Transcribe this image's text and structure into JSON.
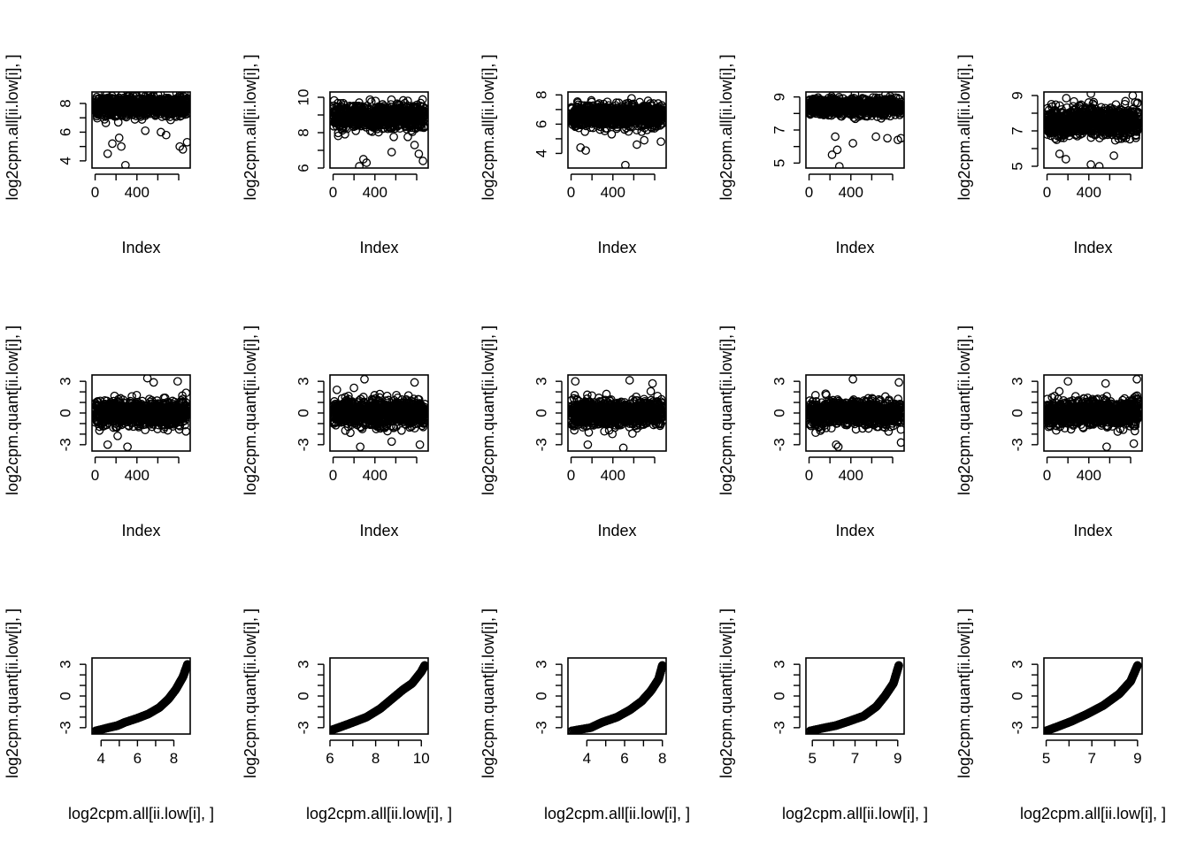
{
  "chart_data": {
    "type": "scatter",
    "layout": {
      "rows": 3,
      "cols": 5
    },
    "panels": [
      {
        "row": 0,
        "col": 0,
        "kind": "index",
        "xlabel": "Index",
        "ylabel": "log2cpm.all[ii.low[i], ]",
        "xlim": [
          -30,
          910
        ],
        "ylim": [
          3.5,
          8.8
        ],
        "xticks": [
          0,
          200,
          400,
          600,
          800
        ],
        "xtick_labels": [
          "0",
          "",
          "400",
          "",
          ""
        ],
        "yticks": [
          4,
          5,
          6,
          7,
          8
        ],
        "ytick_labels": [
          "4",
          "",
          "6",
          "",
          "8"
        ],
        "center": 7.8,
        "spread": 0.55,
        "n": 850,
        "outliers": [
          [
            120,
            4.5
          ],
          [
            165,
            5.2
          ],
          [
            250,
            5.0
          ],
          [
            290,
            3.7
          ],
          [
            230,
            5.6
          ],
          [
            480,
            6.1
          ],
          [
            630,
            6.0
          ],
          [
            680,
            5.8
          ],
          [
            810,
            5.0
          ],
          [
            840,
            4.8
          ],
          [
            880,
            5.3
          ]
        ]
      },
      {
        "row": 0,
        "col": 1,
        "kind": "index",
        "xlabel": "Index",
        "ylabel": "log2cpm.all[ii.low[i], ]",
        "xlim": [
          -30,
          910
        ],
        "ylim": [
          6.0,
          10.3
        ],
        "xticks": [
          0,
          200,
          400,
          600,
          800
        ],
        "xtick_labels": [
          "0",
          "",
          "400",
          "",
          ""
        ],
        "yticks": [
          6,
          7,
          8,
          9,
          10
        ],
        "ytick_labels": [
          "6",
          "",
          "8",
          "",
          "10"
        ],
        "center": 8.9,
        "spread": 0.6,
        "n": 850,
        "outliers": [
          [
            250,
            6.1
          ],
          [
            290,
            6.5
          ],
          [
            320,
            6.3
          ],
          [
            560,
            6.9
          ],
          [
            780,
            7.3
          ],
          [
            860,
            6.4
          ],
          [
            820,
            6.8
          ]
        ]
      },
      {
        "row": 0,
        "col": 2,
        "kind": "index",
        "xlabel": "Index",
        "ylabel": "log2cpm.all[ii.low[i], ]",
        "xlim": [
          -30,
          910
        ],
        "ylim": [
          3.0,
          8.2
        ],
        "xticks": [
          0,
          200,
          400,
          600,
          800
        ],
        "xtick_labels": [
          "0",
          "",
          "400",
          "",
          ""
        ],
        "yticks": [
          4,
          5,
          6,
          7,
          8
        ],
        "ytick_labels": [
          "4",
          "",
          "6",
          "",
          "8"
        ],
        "center": 6.6,
        "spread": 0.65,
        "n": 850,
        "outliers": [
          [
            90,
            4.4
          ],
          [
            140,
            4.2
          ],
          [
            520,
            3.2
          ],
          [
            630,
            4.6
          ],
          [
            700,
            4.9
          ],
          [
            860,
            4.8
          ]
        ]
      },
      {
        "row": 0,
        "col": 3,
        "kind": "index",
        "xlabel": "Index",
        "ylabel": "log2cpm.all[ii.low[i], ]",
        "xlim": [
          -30,
          910
        ],
        "ylim": [
          4.7,
          9.3
        ],
        "xticks": [
          0,
          200,
          400,
          600,
          800
        ],
        "xtick_labels": [
          "0",
          "",
          "400",
          "",
          ""
        ],
        "yticks": [
          5,
          6,
          7,
          8,
          9
        ],
        "ytick_labels": [
          "5",
          "",
          "7",
          "",
          "9"
        ],
        "center": 8.4,
        "spread": 0.4,
        "n": 850,
        "outliers": [
          [
            220,
            5.5
          ],
          [
            270,
            5.8
          ],
          [
            290,
            4.8
          ],
          [
            420,
            6.2
          ],
          [
            640,
            6.6
          ],
          [
            750,
            6.5
          ],
          [
            850,
            6.4
          ],
          [
            880,
            6.5
          ],
          [
            250,
            6.6
          ]
        ]
      },
      {
        "row": 0,
        "col": 4,
        "kind": "index",
        "xlabel": "Index",
        "ylabel": "log2cpm.all[ii.low[i], ]",
        "xlim": [
          -30,
          910
        ],
        "ylim": [
          4.9,
          9.2
        ],
        "xticks": [
          0,
          200,
          400,
          600,
          800
        ],
        "xtick_labels": [
          "0",
          "",
          "400",
          "",
          ""
        ],
        "yticks": [
          5,
          6,
          7,
          8,
          9
        ],
        "ytick_labels": [
          "5",
          "",
          "7",
          "",
          "9"
        ],
        "center": 7.5,
        "spread": 0.7,
        "n": 850,
        "outliers": [
          [
            120,
            5.7
          ],
          [
            180,
            5.4
          ],
          [
            420,
            5.1
          ],
          [
            500,
            5.0
          ],
          [
            640,
            5.6
          ],
          [
            420,
            9.1
          ],
          [
            820,
            9.0
          ]
        ]
      },
      {
        "row": 1,
        "col": 0,
        "kind": "index",
        "xlabel": "Index",
        "ylabel": "log2cpm.quant[ii.low[i], ]",
        "xlim": [
          -30,
          910
        ],
        "ylim": [
          -3.6,
          3.6
        ],
        "xticks": [
          0,
          200,
          400,
          600,
          800
        ],
        "xtick_labels": [
          "0",
          "",
          "400",
          "",
          ""
        ],
        "yticks": [
          -3,
          -2,
          -1,
          0,
          1,
          2,
          3
        ],
        "ytick_labels": [
          "-3",
          "",
          "",
          "0",
          "",
          "",
          "3"
        ],
        "center": 0,
        "spread": 1.0,
        "n": 850,
        "outliers": [
          [
            120,
            -3.0
          ],
          [
            310,
            -3.2
          ],
          [
            500,
            3.3
          ],
          [
            560,
            2.9
          ],
          [
            790,
            3.0
          ]
        ]
      },
      {
        "row": 1,
        "col": 1,
        "kind": "index",
        "xlabel": "Index",
        "ylabel": "log2cpm.quant[ii.low[i], ]",
        "xlim": [
          -30,
          910
        ],
        "ylim": [
          -3.6,
          3.6
        ],
        "xticks": [
          0,
          200,
          400,
          600,
          800
        ],
        "xtick_labels": [
          "0",
          "",
          "400",
          "",
          ""
        ],
        "yticks": [
          -3,
          -2,
          -1,
          0,
          1,
          2,
          3
        ],
        "ytick_labels": [
          "-3",
          "",
          "",
          "0",
          "",
          "",
          "3"
        ],
        "center": 0,
        "spread": 1.0,
        "n": 850,
        "outliers": [
          [
            260,
            -3.2
          ],
          [
            300,
            3.2
          ],
          [
            560,
            -2.7
          ],
          [
            780,
            2.9
          ],
          [
            830,
            -3.0
          ]
        ]
      },
      {
        "row": 1,
        "col": 2,
        "kind": "index",
        "xlabel": "Index",
        "ylabel": "log2cpm.quant[ii.low[i], ]",
        "xlim": [
          -30,
          910
        ],
        "ylim": [
          -3.6,
          3.6
        ],
        "xticks": [
          0,
          200,
          400,
          600,
          800
        ],
        "xtick_labels": [
          "0",
          "",
          "400",
          "",
          ""
        ],
        "yticks": [
          -3,
          -2,
          -1,
          0,
          1,
          2,
          3
        ],
        "ytick_labels": [
          "-3",
          "",
          "",
          "0",
          "",
          "",
          "3"
        ],
        "center": 0,
        "spread": 1.0,
        "n": 850,
        "outliers": [
          [
            40,
            3.0
          ],
          [
            160,
            -3.0
          ],
          [
            500,
            -3.3
          ],
          [
            560,
            3.1
          ],
          [
            780,
            2.8
          ]
        ]
      },
      {
        "row": 1,
        "col": 3,
        "kind": "index",
        "xlabel": "Index",
        "ylabel": "log2cpm.quant[ii.low[i], ]",
        "xlim": [
          -30,
          910
        ],
        "ylim": [
          -3.6,
          3.6
        ],
        "xticks": [
          0,
          200,
          400,
          600,
          800
        ],
        "xtick_labels": [
          "0",
          "",
          "400",
          "",
          ""
        ],
        "yticks": [
          -3,
          -2,
          -1,
          0,
          1,
          2,
          3
        ],
        "ytick_labels": [
          "-3",
          "",
          "",
          "0",
          "",
          "",
          "3"
        ],
        "center": 0,
        "spread": 1.0,
        "n": 850,
        "outliers": [
          [
            260,
            -3.0
          ],
          [
            280,
            -3.2
          ],
          [
            420,
            3.2
          ],
          [
            860,
            2.9
          ],
          [
            880,
            -2.8
          ]
        ]
      },
      {
        "row": 1,
        "col": 4,
        "kind": "index",
        "xlabel": "Index",
        "ylabel": "log2cpm.quant[ii.low[i], ]",
        "xlim": [
          -30,
          910
        ],
        "ylim": [
          -3.6,
          3.6
        ],
        "xticks": [
          0,
          200,
          400,
          600,
          800
        ],
        "xtick_labels": [
          "0",
          "",
          "400",
          "",
          ""
        ],
        "yticks": [
          -3,
          -2,
          -1,
          0,
          1,
          2,
          3
        ],
        "ytick_labels": [
          "-3",
          "",
          "",
          "0",
          "",
          "",
          "3"
        ],
        "center": 0,
        "spread": 1.0,
        "n": 850,
        "outliers": [
          [
            200,
            3.0
          ],
          [
            570,
            -3.2
          ],
          [
            560,
            2.8
          ],
          [
            860,
            3.2
          ],
          [
            830,
            -2.9
          ]
        ]
      },
      {
        "row": 2,
        "col": 0,
        "kind": "qq",
        "xlabel": "log2cpm.all[ii.low[i], ]",
        "ylabel": "log2cpm.quant[ii.low[i], ]",
        "xlim": [
          3.5,
          8.9
        ],
        "ylim": [
          -3.6,
          3.6
        ],
        "xticks": [
          4,
          5,
          6,
          7,
          8
        ],
        "xtick_labels": [
          "4",
          "",
          "6",
          "",
          "8"
        ],
        "yticks": [
          -3,
          -2,
          -1,
          0,
          1,
          2,
          3
        ],
        "ytick_labels": [
          "-3",
          "",
          "",
          "0",
          "",
          "",
          "3"
        ],
        "curve": [
          [
            3.7,
            -3.3
          ],
          [
            4.4,
            -3.0
          ],
          [
            4.9,
            -2.8
          ],
          [
            5.3,
            -2.5
          ],
          [
            6.0,
            -2.1
          ],
          [
            6.6,
            -1.7
          ],
          [
            7.2,
            -1.1
          ],
          [
            7.7,
            -0.3
          ],
          [
            8.1,
            0.6
          ],
          [
            8.5,
            1.8
          ],
          [
            8.75,
            3.0
          ]
        ],
        "n": 260
      },
      {
        "row": 2,
        "col": 1,
        "kind": "qq",
        "xlabel": "log2cpm.all[ii.low[i], ]",
        "ylabel": "log2cpm.quant[ii.low[i], ]",
        "xlim": [
          6.0,
          10.3
        ],
        "ylim": [
          -3.6,
          3.6
        ],
        "xticks": [
          6,
          7,
          8,
          9,
          10
        ],
        "xtick_labels": [
          "6",
          "",
          "8",
          "",
          "10"
        ],
        "yticks": [
          -3,
          -2,
          -1,
          0,
          1,
          2,
          3
        ],
        "ytick_labels": [
          "-3",
          "",
          "",
          "0",
          "",
          "",
          "3"
        ],
        "curve": [
          [
            6.1,
            -3.2
          ],
          [
            6.5,
            -2.9
          ],
          [
            7.0,
            -2.5
          ],
          [
            7.6,
            -2.0
          ],
          [
            8.2,
            -1.2
          ],
          [
            8.7,
            -0.3
          ],
          [
            9.2,
            0.6
          ],
          [
            9.6,
            1.2
          ],
          [
            10.0,
            2.3
          ],
          [
            10.15,
            2.9
          ]
        ],
        "n": 260
      },
      {
        "row": 2,
        "col": 2,
        "kind": "qq",
        "xlabel": "log2cpm.all[ii.low[i], ]",
        "ylabel": "log2cpm.quant[ii.low[i], ]",
        "xlim": [
          3.0,
          8.2
        ],
        "ylim": [
          -3.6,
          3.6
        ],
        "xticks": [
          4,
          5,
          6,
          7,
          8
        ],
        "xtick_labels": [
          "4",
          "",
          "6",
          "",
          "8"
        ],
        "yticks": [
          -3,
          -2,
          -1,
          0,
          1,
          2,
          3
        ],
        "ytick_labels": [
          "-3",
          "",
          "",
          "0",
          "",
          "",
          "3"
        ],
        "curve": [
          [
            3.2,
            -3.3
          ],
          [
            4.2,
            -3.0
          ],
          [
            4.8,
            -2.5
          ],
          [
            5.6,
            -2.0
          ],
          [
            6.3,
            -1.3
          ],
          [
            6.9,
            -0.5
          ],
          [
            7.4,
            0.5
          ],
          [
            7.8,
            1.6
          ],
          [
            8.0,
            2.9
          ]
        ],
        "n": 260
      },
      {
        "row": 2,
        "col": 3,
        "kind": "qq",
        "xlabel": "log2cpm.all[ii.low[i], ]",
        "ylabel": "log2cpm.quant[ii.low[i], ]",
        "xlim": [
          4.7,
          9.3
        ],
        "ylim": [
          -3.6,
          3.6
        ],
        "xticks": [
          5,
          6,
          7,
          8,
          9
        ],
        "xtick_labels": [
          "5",
          "",
          "7",
          "",
          "9"
        ],
        "yticks": [
          -3,
          -2,
          -1,
          0,
          1,
          2,
          3
        ],
        "ytick_labels": [
          "-3",
          "",
          "",
          "0",
          "",
          "",
          "3"
        ],
        "curve": [
          [
            4.9,
            -3.3
          ],
          [
            5.6,
            -3.0
          ],
          [
            6.1,
            -2.8
          ],
          [
            6.7,
            -2.4
          ],
          [
            7.4,
            -1.9
          ],
          [
            8.0,
            -1.0
          ],
          [
            8.4,
            0.0
          ],
          [
            8.8,
            1.2
          ],
          [
            9.05,
            2.9
          ]
        ],
        "n": 260
      },
      {
        "row": 2,
        "col": 4,
        "kind": "qq",
        "xlabel": "log2cpm.all[ii.low[i], ]",
        "ylabel": "log2cpm.quant[ii.low[i], ]",
        "xlim": [
          4.9,
          9.2
        ],
        "ylim": [
          -3.6,
          3.6
        ],
        "xticks": [
          5,
          6,
          7,
          8,
          9
        ],
        "xtick_labels": [
          "5",
          "",
          "7",
          "",
          "9"
        ],
        "yticks": [
          -3,
          -2,
          -1,
          0,
          1,
          2,
          3
        ],
        "ytick_labels": [
          "-3",
          "",
          "",
          "0",
          "",
          "",
          "3"
        ],
        "curve": [
          [
            5.0,
            -3.3
          ],
          [
            5.5,
            -2.9
          ],
          [
            6.1,
            -2.4
          ],
          [
            6.8,
            -1.7
          ],
          [
            7.5,
            -0.9
          ],
          [
            8.2,
            0.2
          ],
          [
            8.7,
            1.4
          ],
          [
            9.0,
            2.9
          ]
        ],
        "n": 260
      }
    ]
  }
}
